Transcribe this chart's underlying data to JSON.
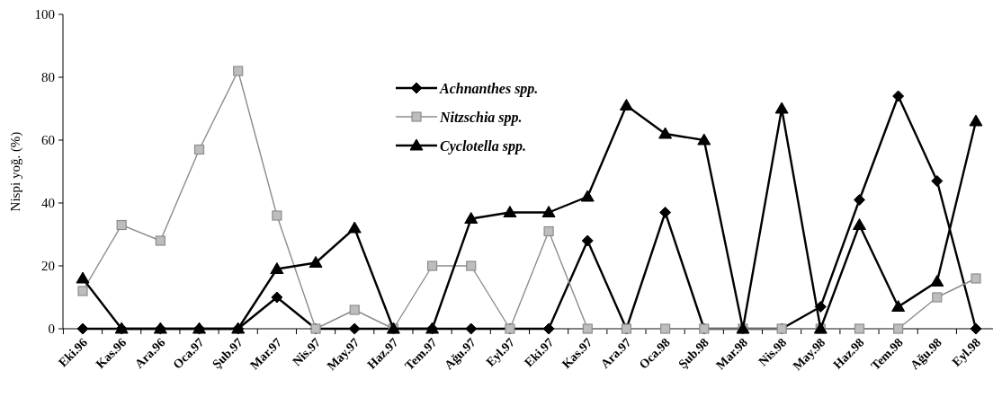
{
  "chart_data": {
    "type": "line",
    "ylabel": "Nispi yoğ. (%)",
    "categories": [
      "Eki.96",
      "Kas.96",
      "Ara.96",
      "Oca.97",
      "Şub.97",
      "Mar.97",
      "Nis.97",
      "May.97",
      "Haz.97",
      "Tem.97",
      "Ağu.97",
      "Eyl.97",
      "Eki.97",
      "Kas.97",
      "Ara.97",
      "Oca.98",
      "Şub.98",
      "Mar.98",
      "Nis.98",
      "May.98",
      "Haz.98",
      "Tem.98",
      "Ağu.98",
      "Eyl.98"
    ],
    "series": [
      {
        "name": "Achnanthes spp.",
        "color": "#000000",
        "marker": "diamond",
        "values": [
          0,
          0,
          0,
          0,
          0,
          10,
          0,
          0,
          0,
          0,
          0,
          0,
          0,
          28,
          0,
          37,
          0,
          0,
          0,
          7,
          41,
          74,
          47,
          0
        ]
      },
      {
        "name": "Nitzschia spp.",
        "color": "#8c8c8c",
        "marker": "square",
        "values": [
          12,
          33,
          28,
          57,
          82,
          36,
          0,
          6,
          0,
          20,
          20,
          0,
          31,
          0,
          0,
          0,
          0,
          0,
          0,
          0,
          0,
          0,
          10,
          16
        ]
      },
      {
        "name": "Cyclotella spp.",
        "color": "#000000",
        "marker": "triangle",
        "values": [
          16,
          0,
          0,
          0,
          0,
          19,
          21,
          32,
          0,
          0,
          35,
          37,
          37,
          42,
          71,
          62,
          60,
          0,
          70,
          0,
          33,
          7,
          15,
          66
        ]
      }
    ],
    "ylim": [
      0,
      100
    ],
    "yticks": [
      0,
      20,
      40,
      60,
      80,
      100
    ],
    "grid": false,
    "legend": "top"
  }
}
